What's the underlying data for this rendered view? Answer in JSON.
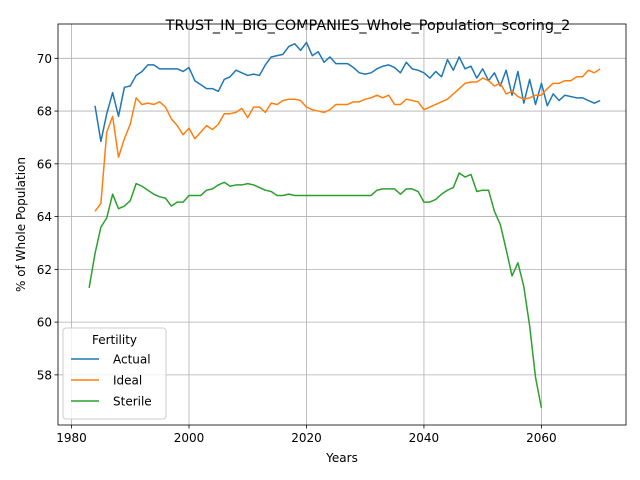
{
  "chart_data": {
    "type": "line",
    "title": "TRUST_IN_BIG_COMPANIES_Whole_Population_scoring_2",
    "xlabel": "Years",
    "ylabel": "% of Whole Population",
    "xlim": [
      1977.7,
      2074.4
    ],
    "ylim": [
      56.1,
      71.3
    ],
    "xticks": [
      1980,
      2000,
      2020,
      2040,
      2060
    ],
    "yticks": [
      58,
      60,
      62,
      64,
      66,
      68,
      70
    ],
    "grid": true,
    "legend": {
      "title": "Fertility",
      "placement": "lower-left"
    },
    "series": [
      {
        "name": "Actual",
        "color": "#1f77b4",
        "x": [
          1984,
          1985,
          1986,
          1987,
          1988,
          1989,
          1990,
          1991,
          1992,
          1993,
          1994,
          1995,
          1996,
          1997,
          1998,
          1999,
          2000,
          2001,
          2002,
          2003,
          2004,
          2005,
          2006,
          2007,
          2008,
          2009,
          2010,
          2011,
          2012,
          2013,
          2014,
          2015,
          2016,
          2017,
          2018,
          2019,
          2020,
          2021,
          2022,
          2023,
          2024,
          2025,
          2026,
          2027,
          2028,
          2029,
          2030,
          2031,
          2032,
          2033,
          2034,
          2035,
          2036,
          2037,
          2038,
          2039,
          2040,
          2041,
          2042,
          2043,
          2044,
          2045,
          2046,
          2047,
          2048,
          2049,
          2050,
          2051,
          2052,
          2053,
          2054,
          2055,
          2056,
          2057,
          2058,
          2059,
          2060,
          2061,
          2062,
          2063,
          2064,
          2065,
          2066,
          2067,
          2068,
          2069,
          2070
        ],
        "values": [
          68.2,
          66.85,
          67.9,
          68.7,
          67.8,
          68.9,
          68.95,
          69.35,
          69.5,
          69.75,
          69.75,
          69.6,
          69.6,
          69.6,
          69.6,
          69.5,
          69.65,
          69.15,
          69.0,
          68.85,
          68.85,
          68.75,
          69.2,
          69.3,
          69.55,
          69.45,
          69.35,
          69.4,
          69.35,
          69.75,
          70.05,
          70.1,
          70.15,
          70.45,
          70.55,
          70.3,
          70.6,
          70.1,
          70.25,
          69.85,
          70.05,
          69.8,
          69.8,
          69.8,
          69.65,
          69.45,
          69.4,
          69.45,
          69.6,
          69.7,
          69.75,
          69.65,
          69.45,
          69.85,
          69.6,
          69.55,
          69.45,
          69.25,
          69.5,
          69.3,
          69.95,
          69.55,
          70.05,
          69.6,
          69.7,
          69.25,
          69.6,
          69.15,
          69.45,
          68.95,
          69.55,
          68.6,
          69.5,
          68.3,
          69.2,
          68.25,
          69.05,
          68.2,
          68.65,
          68.4,
          68.6,
          68.55,
          68.5,
          68.5,
          68.4,
          68.3,
          68.4
        ]
      },
      {
        "name": "Ideal",
        "color": "#ff7f0e",
        "x": [
          1984,
          1985,
          1986,
          1987,
          1988,
          1989,
          1990,
          1991,
          1992,
          1993,
          1994,
          1995,
          1996,
          1997,
          1998,
          1999,
          2000,
          2001,
          2002,
          2003,
          2004,
          2005,
          2006,
          2007,
          2008,
          2009,
          2010,
          2011,
          2012,
          2013,
          2014,
          2015,
          2016,
          2017,
          2018,
          2019,
          2020,
          2021,
          2022,
          2023,
          2024,
          2025,
          2026,
          2027,
          2028,
          2029,
          2030,
          2031,
          2032,
          2033,
          2034,
          2035,
          2036,
          2037,
          2038,
          2039,
          2040,
          2041,
          2042,
          2043,
          2044,
          2045,
          2046,
          2047,
          2048,
          2049,
          2050,
          2051,
          2052,
          2053,
          2054,
          2055,
          2056,
          2057,
          2058,
          2059,
          2060,
          2061,
          2062,
          2063,
          2064,
          2065,
          2066,
          2067,
          2068,
          2069,
          2070
        ],
        "values": [
          64.2,
          64.5,
          67.2,
          67.8,
          66.25,
          66.95,
          67.5,
          68.5,
          68.25,
          68.3,
          68.25,
          68.35,
          68.15,
          67.7,
          67.45,
          67.1,
          67.35,
          66.95,
          67.2,
          67.45,
          67.3,
          67.5,
          67.9,
          67.9,
          67.95,
          68.1,
          67.75,
          68.15,
          68.15,
          67.95,
          68.3,
          68.25,
          68.4,
          68.45,
          68.45,
          68.4,
          68.15,
          68.05,
          68.0,
          67.95,
          68.05,
          68.25,
          68.25,
          68.25,
          68.35,
          68.35,
          68.45,
          68.5,
          68.6,
          68.5,
          68.6,
          68.25,
          68.25,
          68.45,
          68.4,
          68.35,
          68.05,
          68.15,
          68.25,
          68.35,
          68.45,
          68.65,
          68.85,
          69.05,
          69.1,
          69.1,
          69.25,
          69.15,
          68.95,
          69.05,
          68.65,
          68.75,
          68.55,
          68.45,
          68.5,
          68.6,
          68.6,
          68.85,
          69.05,
          69.05,
          69.15,
          69.15,
          69.3,
          69.3,
          69.55,
          69.45,
          69.6
        ]
      },
      {
        "name": "Sterile",
        "color": "#2ca02c",
        "x": [
          1983,
          1984,
          1985,
          1986,
          1987,
          1988,
          1989,
          1990,
          1991,
          1992,
          1993,
          1994,
          1995,
          1996,
          1997,
          1998,
          1999,
          2000,
          2001,
          2002,
          2003,
          2004,
          2005,
          2006,
          2007,
          2008,
          2009,
          2010,
          2011,
          2012,
          2013,
          2014,
          2015,
          2016,
          2017,
          2018,
          2019,
          2020,
          2021,
          2022,
          2023,
          2024,
          2025,
          2026,
          2027,
          2028,
          2029,
          2030,
          2031,
          2032,
          2033,
          2034,
          2035,
          2036,
          2037,
          2038,
          2039,
          2040,
          2041,
          2042,
          2043,
          2044,
          2045,
          2046,
          2047,
          2048,
          2049,
          2050,
          2051,
          2052,
          2053,
          2054,
          2055,
          2056,
          2057,
          2058,
          2059,
          2060
        ],
        "values": [
          61.3,
          62.6,
          63.6,
          63.95,
          64.85,
          64.3,
          64.4,
          64.6,
          65.25,
          65.15,
          65.0,
          64.85,
          64.75,
          64.7,
          64.4,
          64.55,
          64.55,
          64.8,
          64.8,
          64.8,
          65.0,
          65.05,
          65.2,
          65.3,
          65.15,
          65.2,
          65.2,
          65.25,
          65.2,
          65.1,
          65.0,
          64.95,
          64.8,
          64.8,
          64.85,
          64.8,
          64.8,
          64.8,
          64.8,
          64.8,
          64.8,
          64.8,
          64.8,
          64.8,
          64.8,
          64.8,
          64.8,
          64.8,
          64.8,
          65.0,
          65.05,
          65.05,
          65.05,
          64.85,
          65.05,
          65.05,
          64.95,
          64.55,
          64.55,
          64.65,
          64.85,
          65.0,
          65.1,
          65.65,
          65.5,
          65.6,
          64.95,
          65.0,
          65.0,
          64.2,
          63.7,
          62.75,
          61.75,
          62.25,
          61.35,
          59.85,
          57.9,
          56.75
        ]
      }
    ]
  }
}
